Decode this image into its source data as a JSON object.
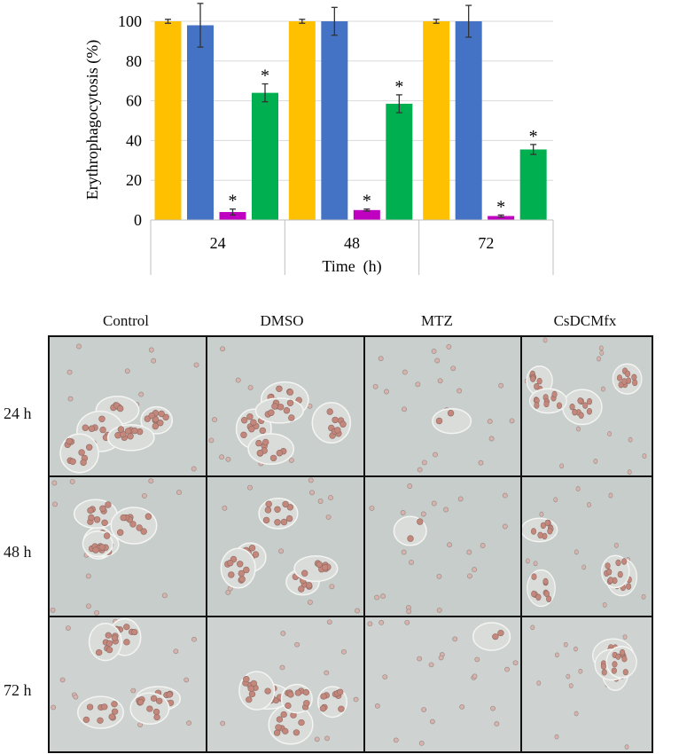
{
  "chart_data": {
    "type": "bar",
    "ylabel": "Erythrophagocytosis (%)",
    "xlabel": "Time  (h)",
    "categories": [
      "24",
      "48",
      "72"
    ],
    "ylim": [
      0,
      100
    ],
    "yticks": [
      "0",
      "20",
      "40",
      "60",
      "80",
      "100"
    ],
    "grid": true,
    "legend": "none",
    "series": [
      {
        "color": "#ffc000",
        "values": [
          100,
          100,
          100
        ],
        "errors": [
          1,
          1,
          1
        ],
        "significant": [
          false,
          false,
          false
        ]
      },
      {
        "color": "#4472c4",
        "values": [
          98,
          100,
          100
        ],
        "errors": [
          11,
          7,
          8
        ],
        "significant": [
          false,
          false,
          false
        ]
      },
      {
        "color": "#c000c0",
        "values": [
          4,
          5,
          2
        ],
        "errors": [
          1.5,
          0.5,
          0.5
        ],
        "significant": [
          true,
          true,
          true
        ]
      },
      {
        "color": "#00b050",
        "values": [
          64,
          58.5,
          35.5
        ],
        "errors": [
          4.5,
          4.5,
          2.5
        ],
        "significant": [
          true,
          true,
          true
        ]
      }
    ],
    "marker": "*"
  },
  "micrographs": {
    "columns": [
      "Control",
      "DMSO",
      "MTZ",
      "CsDCMfx"
    ],
    "rows": [
      "24 h",
      "48 h",
      "72 h"
    ]
  }
}
